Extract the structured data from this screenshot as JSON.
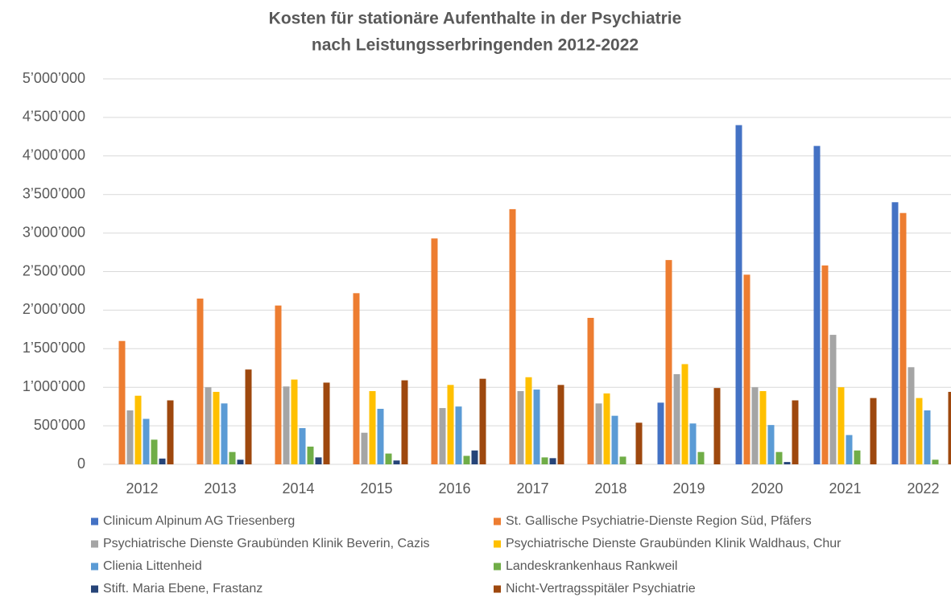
{
  "chart_data": {
    "type": "bar",
    "title": [
      "Kosten für stationäre Aufenthalte in der Psychiatrie",
      "nach Leistungsserbringenden  2012-2022"
    ],
    "categories": [
      "2012",
      "2013",
      "2014",
      "2015",
      "2016",
      "2017",
      "2018",
      "2019",
      "2020",
      "2021",
      "2022"
    ],
    "series": [
      {
        "name": "Clinicum Alpinum AG Triesenberg",
        "color": "#4472c4",
        "values": [
          null,
          null,
          null,
          null,
          null,
          null,
          null,
          800000,
          4400000,
          4130000,
          3400000
        ]
      },
      {
        "name": "St. Gallische Psychiatrie-Dienste Region Süd, Pfäfers",
        "color": "#ed7d31",
        "values": [
          1600000,
          2150000,
          2060000,
          2220000,
          2930000,
          3310000,
          1900000,
          2650000,
          2460000,
          2580000,
          3260000
        ]
      },
      {
        "name": "Psychiatrische Dienste Graubünden Klinik Beverin, Cazis",
        "color": "#a5a5a5",
        "values": [
          700000,
          1000000,
          1010000,
          410000,
          730000,
          950000,
          790000,
          1170000,
          1000000,
          1680000,
          1260000
        ]
      },
      {
        "name": "Psychiatrische Dienste Graubünden Klinik Waldhaus, Chur",
        "color": "#ffc000",
        "values": [
          890000,
          940000,
          1100000,
          950000,
          1030000,
          1130000,
          920000,
          1300000,
          950000,
          1000000,
          860000
        ]
      },
      {
        "name": "Clienia Littenheid",
        "color": "#5b9bd5",
        "values": [
          590000,
          790000,
          470000,
          720000,
          750000,
          970000,
          630000,
          530000,
          510000,
          380000,
          700000
        ]
      },
      {
        "name": "Landeskrankenhaus Rankweil",
        "color": "#70ad47",
        "values": [
          320000,
          160000,
          230000,
          140000,
          110000,
          90000,
          100000,
          160000,
          160000,
          180000,
          60000
        ]
      },
      {
        "name": "Stift. Maria Ebene, Frastanz",
        "color": "#264478",
        "values": [
          75000,
          60000,
          90000,
          50000,
          180000,
          80000,
          null,
          null,
          30000,
          null,
          null
        ]
      },
      {
        "name": "Nicht-Vertragsspitäler Psychiatrie",
        "color": "#9e480e",
        "values": [
          830000,
          1230000,
          1060000,
          1090000,
          1110000,
          1030000,
          540000,
          990000,
          830000,
          860000,
          940000
        ]
      }
    ],
    "ylim": [
      0,
      5000000
    ],
    "yticks": [
      0,
      {
        "value": 500000,
        "label": "500’000"
      },
      {
        "value": 1000000,
        "label": "1’000’000"
      },
      {
        "value": 1500000,
        "label": "1’500’000"
      },
      {
        "value": 2000000,
        "label": "2’000’000"
      },
      {
        "value": 2500000,
        "label": "2’500’000"
      },
      {
        "value": 3000000,
        "label": "3’000’000"
      },
      {
        "value": 3500000,
        "label": "3’500’000"
      },
      {
        "value": 4000000,
        "label": "4’000’000"
      },
      {
        "value": 4500000,
        "label": "4’500’000"
      },
      {
        "value": 5000000,
        "label": "5’000’000"
      }
    ],
    "grid": true,
    "legend": "bottom"
  }
}
